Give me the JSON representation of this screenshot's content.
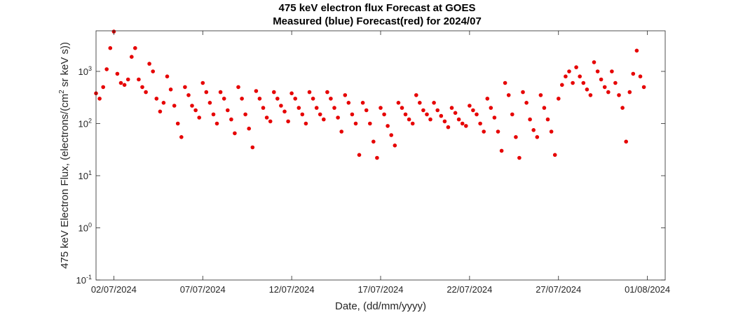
{
  "chart_data": {
    "type": "scatter",
    "title": "475 keV electron flux Forecast at GOES",
    "subtitle": "Measured (blue) Forecast(red) for 2024/07",
    "xlabel": "Date, (dd/mm/yyyy)",
    "ylabel_main": "475 keV Electron Flux, (electrons/(cm",
    "ylabel_sup": "2",
    "ylabel_tail": " sr keV s))",
    "y_scale": "log",
    "ylim": [
      0.1,
      6000
    ],
    "xlim": [
      "2024-07-01 00:00",
      "2024-08-02 00:00"
    ],
    "grid": false,
    "x_ticks": [
      {
        "value": "2024-07-02",
        "label": "02/07/2024"
      },
      {
        "value": "2024-07-07",
        "label": "07/07/2024"
      },
      {
        "value": "2024-07-12",
        "label": "12/07/2024"
      },
      {
        "value": "2024-07-17",
        "label": "17/07/2024"
      },
      {
        "value": "2024-07-22",
        "label": "22/07/2024"
      },
      {
        "value": "2024-07-27",
        "label": "27/07/2024"
      },
      {
        "value": "2024-08-01",
        "label": "01/08/2024"
      }
    ],
    "y_ticks": [
      {
        "value": 0.1,
        "base": "10",
        "exp": "-1"
      },
      {
        "value": 1,
        "base": "10",
        "exp": "0"
      },
      {
        "value": 10,
        "base": "10",
        "exp": "1"
      },
      {
        "value": 100,
        "base": "10",
        "exp": "2"
      },
      {
        "value": 1000,
        "base": "10",
        "exp": "3"
      }
    ],
    "series": [
      {
        "color": "#e60000",
        "daily_profiles": [
          {
            "date": "2024-07-01",
            "values": [
              380,
              300,
              500,
              1100,
              2800
            ]
          },
          {
            "date": "2024-07-02",
            "values": [
              5800,
              900,
              600,
              550,
              700
            ]
          },
          {
            "date": "2024-07-03",
            "values": [
              1900,
              2800,
              700,
              500,
              400
            ]
          },
          {
            "date": "2024-07-04",
            "values": [
              1400,
              1000,
              300,
              170,
              250
            ]
          },
          {
            "date": "2024-07-05",
            "values": [
              800,
              450,
              220,
              100,
              55
            ]
          },
          {
            "date": "2024-07-06",
            "values": [
              500,
              350,
              220,
              180,
              130
            ]
          },
          {
            "date": "2024-07-07",
            "values": [
              600,
              400,
              250,
              150,
              100
            ]
          },
          {
            "date": "2024-07-08",
            "values": [
              400,
              300,
              180,
              120,
              65
            ]
          },
          {
            "date": "2024-07-09",
            "values": [
              500,
              300,
              150,
              80,
              35
            ]
          },
          {
            "date": "2024-07-10",
            "values": [
              420,
              300,
              200,
              130,
              110
            ]
          },
          {
            "date": "2024-07-11",
            "values": [
              400,
              300,
              220,
              170,
              110
            ]
          },
          {
            "date": "2024-07-12",
            "values": [
              380,
              300,
              200,
              150,
              100
            ]
          },
          {
            "date": "2024-07-13",
            "values": [
              400,
              300,
              200,
              150,
              120
            ]
          },
          {
            "date": "2024-07-14",
            "values": [
              400,
              300,
              200,
              130,
              70
            ]
          },
          {
            "date": "2024-07-15",
            "values": [
              350,
              250,
              150,
              100,
              25
            ]
          },
          {
            "date": "2024-07-16",
            "values": [
              250,
              180,
              100,
              45,
              22
            ]
          },
          {
            "date": "2024-07-17",
            "values": [
              200,
              150,
              90,
              60,
              38
            ]
          },
          {
            "date": "2024-07-18",
            "values": [
              250,
              200,
              150,
              120,
              100
            ]
          },
          {
            "date": "2024-07-19",
            "values": [
              350,
              250,
              180,
              150,
              120
            ]
          },
          {
            "date": "2024-07-20",
            "values": [
              250,
              180,
              140,
              110,
              85
            ]
          },
          {
            "date": "2024-07-21",
            "values": [
              200,
              160,
              120,
              100,
              90
            ]
          },
          {
            "date": "2024-07-22",
            "values": [
              220,
              180,
              150,
              100,
              70
            ]
          },
          {
            "date": "2024-07-23",
            "values": [
              300,
              200,
              130,
              70,
              30
            ]
          },
          {
            "date": "2024-07-24",
            "values": [
              600,
              350,
              150,
              55,
              22
            ]
          },
          {
            "date": "2024-07-25",
            "values": [
              400,
              250,
              120,
              75,
              55
            ]
          },
          {
            "date": "2024-07-26",
            "values": [
              350,
              200,
              120,
              70,
              25
            ]
          },
          {
            "date": "2024-07-27",
            "values": [
              300,
              550,
              800,
              1000,
              600
            ]
          },
          {
            "date": "2024-07-28",
            "values": [
              1200,
              800,
              600,
              450,
              350
            ]
          },
          {
            "date": "2024-07-29",
            "values": [
              1500,
              1000,
              700,
              500,
              400
            ]
          },
          {
            "date": "2024-07-30",
            "values": [
              1000,
              600,
              350,
              200,
              45
            ]
          },
          {
            "date": "2024-07-31",
            "values": [
              400,
              900,
              2500,
              800,
              500
            ]
          }
        ]
      }
    ]
  }
}
